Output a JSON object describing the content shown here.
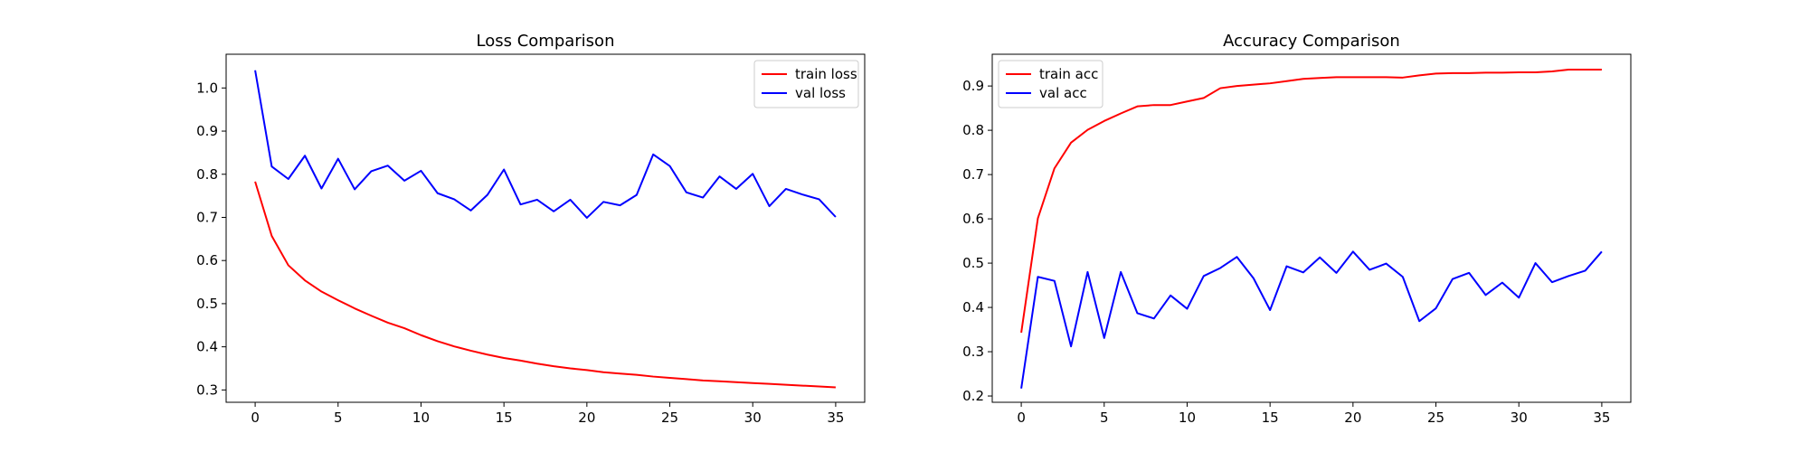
{
  "figure": {
    "background": "#ffffff",
    "colors": {
      "red": "#ff0000",
      "blue": "#0000ff",
      "axes": "#000000",
      "legend_border": "#cccccc"
    }
  },
  "chart_data": [
    {
      "type": "line",
      "title": "Loss Comparison",
      "xlabel": "",
      "ylabel": "",
      "xlim": [
        -1.75,
        36.75
      ],
      "ylim": [
        0.2714,
        1.0782
      ],
      "xticks": [
        0,
        5,
        10,
        15,
        20,
        25,
        30,
        35
      ],
      "yticks": [
        0.3,
        0.4,
        0.5,
        0.6,
        0.7,
        0.8,
        0.9,
        1.0
      ],
      "ytick_labels": [
        "0.3",
        "0.4",
        "0.5",
        "0.6",
        "0.7",
        "0.8",
        "0.9",
        "1.0"
      ],
      "grid": false,
      "legend_position": "top-right",
      "x": [
        0,
        1,
        2,
        3,
        4,
        5,
        6,
        7,
        8,
        9,
        10,
        11,
        12,
        13,
        14,
        15,
        16,
        17,
        18,
        19,
        20,
        21,
        22,
        23,
        24,
        25,
        26,
        27,
        28,
        29,
        30,
        31,
        32,
        33,
        34,
        35
      ],
      "series": [
        {
          "name": "train loss",
          "color": "#ff0000",
          "values": [
            0.783,
            0.657,
            0.589,
            0.554,
            0.528,
            0.508,
            0.489,
            0.472,
            0.456,
            0.443,
            0.427,
            0.413,
            0.401,
            0.391,
            0.382,
            0.374,
            0.368,
            0.361,
            0.355,
            0.35,
            0.346,
            0.341,
            0.338,
            0.335,
            0.331,
            0.328,
            0.325,
            0.322,
            0.32,
            0.318,
            0.316,
            0.314,
            0.312,
            0.31,
            0.308,
            0.306
          ]
        },
        {
          "name": "val loss",
          "color": "#0000ff",
          "values": [
            1.041,
            0.818,
            0.789,
            0.843,
            0.767,
            0.836,
            0.765,
            0.807,
            0.82,
            0.785,
            0.808,
            0.756,
            0.742,
            0.716,
            0.752,
            0.811,
            0.73,
            0.741,
            0.714,
            0.741,
            0.699,
            0.736,
            0.728,
            0.752,
            0.846,
            0.819,
            0.758,
            0.746,
            0.795,
            0.766,
            0.801,
            0.726,
            0.766,
            0.753,
            0.742,
            0.701
          ]
        }
      ]
    },
    {
      "type": "line",
      "title": "Accuracy Comparison",
      "xlabel": "",
      "ylabel": "",
      "xlim": [
        -1.75,
        36.75
      ],
      "ylim": [
        0.1858,
        0.9717
      ],
      "xticks": [
        0,
        5,
        10,
        15,
        20,
        25,
        30,
        35
      ],
      "yticks": [
        0.2,
        0.3,
        0.4,
        0.5,
        0.6,
        0.7,
        0.8,
        0.9
      ],
      "ytick_labels": [
        "0.2",
        "0.3",
        "0.4",
        "0.5",
        "0.6",
        "0.7",
        "0.8",
        "0.9"
      ],
      "grid": false,
      "legend_position": "top-left",
      "x": [
        0,
        1,
        2,
        3,
        4,
        5,
        6,
        7,
        8,
        9,
        10,
        11,
        12,
        13,
        14,
        15,
        16,
        17,
        18,
        19,
        20,
        21,
        22,
        23,
        24,
        25,
        26,
        27,
        28,
        29,
        30,
        31,
        32,
        33,
        34,
        35
      ],
      "series": [
        {
          "name": "train acc",
          "color": "#ff0000",
          "values": [
            0.343,
            0.601,
            0.714,
            0.772,
            0.801,
            0.821,
            0.838,
            0.854,
            0.857,
            0.857,
            0.865,
            0.873,
            0.895,
            0.9,
            0.903,
            0.906,
            0.911,
            0.916,
            0.918,
            0.92,
            0.92,
            0.92,
            0.92,
            0.919,
            0.924,
            0.928,
            0.929,
            0.929,
            0.93,
            0.93,
            0.931,
            0.931,
            0.933,
            0.937,
            0.937,
            0.937
          ]
        },
        {
          "name": "val acc",
          "color": "#0000ff",
          "values": [
            0.217,
            0.469,
            0.46,
            0.312,
            0.48,
            0.331,
            0.48,
            0.387,
            0.375,
            0.427,
            0.397,
            0.471,
            0.489,
            0.514,
            0.466,
            0.394,
            0.493,
            0.479,
            0.513,
            0.478,
            0.526,
            0.485,
            0.499,
            0.469,
            0.369,
            0.398,
            0.464,
            0.478,
            0.428,
            0.456,
            0.422,
            0.5,
            0.457,
            0.471,
            0.483,
            0.526
          ]
        }
      ]
    }
  ]
}
